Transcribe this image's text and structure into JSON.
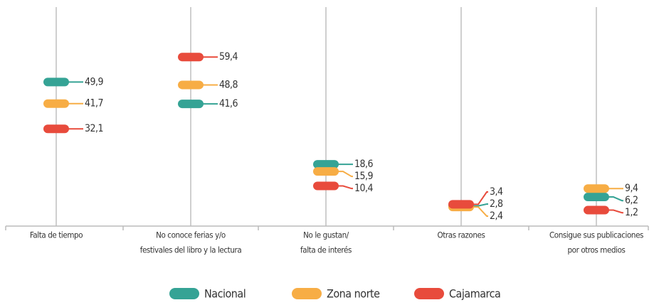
{
  "chart_data": {
    "type": "dotplot",
    "categories": [
      [
        "Falta de tiempo"
      ],
      [
        "No conoce ferias y/o",
        "festivales del libro y la lectura"
      ],
      [
        "No le gustan/",
        "falta de interés"
      ],
      [
        "Otras razones"
      ],
      [
        "Consigue sus publicaciones",
        "por otros medios"
      ]
    ],
    "series": [
      {
        "name": "Nacional",
        "color": "#35a395",
        "values": [
          49.9,
          41.6,
          18.6,
          2.8,
          6.2
        ],
        "value_labels": [
          "49,9",
          "41,6",
          "18,6",
          "2,8",
          "6,2"
        ]
      },
      {
        "name": "Zona norte",
        "color": "#f7ad45",
        "values": [
          41.7,
          48.8,
          15.9,
          2.4,
          9.4
        ],
        "value_labels": [
          "41,7",
          "48,8",
          "15,9",
          "2,4",
          "9,4"
        ]
      },
      {
        "name": "Cajamarca",
        "color": "#e84b3c",
        "values": [
          32.1,
          59.4,
          10.4,
          3.4,
          1.2
        ],
        "value_labels": [
          "32,1",
          "59,4",
          "10,4",
          "3,4",
          "1,2"
        ]
      }
    ],
    "ylim": [
      0,
      60
    ],
    "grid": true
  }
}
